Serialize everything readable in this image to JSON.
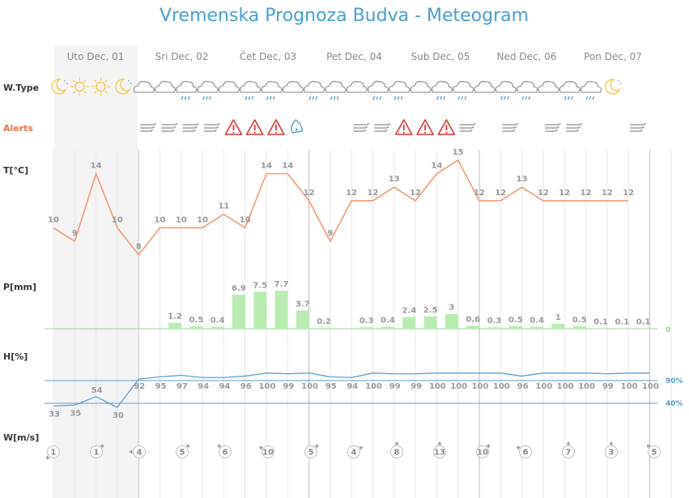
{
  "title": "Vremenska Prognoza Budva - Meteogram",
  "days": [
    "Uto Dec, 01",
    "Sri Dec, 02",
    "Čet Dec, 03",
    "Pet Dec, 04",
    "Sub Dec, 05",
    "Ned Dec, 06",
    "Pon Dec, 07"
  ],
  "row_labels": {
    "wtype": "W.Type",
    "alerts": "Alerts",
    "temp": "T[°C]",
    "precip": "P[mm]",
    "humidity": "H[%]",
    "wind": "W[m/s]"
  },
  "colors": {
    "title": "#4a9fd0",
    "temp_line": "#ef9a73",
    "precip_bar": "#b8ecb0",
    "precip_axis": "#8fd88a",
    "humidity_line": "#5b9ec9",
    "alerts_label": "#e8734a",
    "alert_triangle": "#e03434",
    "highlight": "#f4f4f4"
  },
  "weather_icons": [
    "moon-icon",
    "sun-icon",
    "sun-icon",
    "moon-icon",
    "cloud-icon",
    "cloud-icon",
    "cloud-icon",
    "cloud-icon",
    "cloud-icon",
    "cloud-icon",
    "cloud-icon",
    "cloud-icon",
    "cloud-icon",
    "cloud-icon",
    "cloud-icon",
    "cloud-icon",
    "cloud-icon",
    "cloud-icon",
    "cloud-icon",
    "cloud-icon",
    "cloud-icon",
    "cloud-icon",
    "cloud-icon",
    "cloud-icon",
    "cloud-icon",
    "cloud-icon",
    "moon-icon"
  ],
  "alerts": [
    "",
    "",
    "",
    "",
    "wind-icon",
    "wind-icon",
    "wind-icon",
    "wind-icon",
    "warning-icon",
    "warning-icon",
    "warning-icon",
    "hail-icon",
    "",
    "",
    "wind-icon",
    "wind-icon",
    "warning-icon",
    "warning-icon",
    "warning-icon",
    "wind-icon",
    "",
    "wind-icon",
    "",
    "wind-icon",
    "wind-icon",
    "",
    "",
    "wind-icon"
  ],
  "chart_data": {
    "type": "line",
    "series": [
      {
        "name": "T[°C]",
        "values": [
          10,
          9,
          14,
          10,
          8,
          10,
          10,
          10,
          11,
          10,
          14,
          14,
          12,
          9,
          12,
          12,
          13,
          12,
          14,
          15,
          12,
          12,
          13,
          12,
          12,
          12,
          12,
          12
        ]
      },
      {
        "name": "P[mm]",
        "values": [
          null,
          null,
          null,
          null,
          null,
          null,
          1.2,
          0.5,
          0.4,
          6.9,
          7.5,
          7.7,
          3.7,
          0.2,
          null,
          0.3,
          0.4,
          2.4,
          2.5,
          3,
          0.6,
          0.3,
          0.5,
          0.4,
          1,
          0.5,
          0.1,
          0.1,
          0.1
        ],
        "reference_label": "0"
      },
      {
        "name": "H[%]",
        "values": [
          33,
          35,
          54,
          30,
          92,
          95,
          97,
          94,
          94,
          96,
          100,
          99,
          100,
          95,
          94,
          100,
          99,
          99,
          100,
          100,
          100,
          100,
          96,
          100,
          100,
          100,
          99,
          100,
          100
        ],
        "reference_lines": [
          {
            "value": 90,
            "label": "90%"
          },
          {
            "value": 40,
            "label": "40%"
          }
        ]
      },
      {
        "name": "W[m/s]",
        "values": [
          1,
          1,
          4,
          5,
          6,
          10,
          5,
          4,
          8,
          13,
          10,
          6,
          7,
          3,
          5
        ],
        "direction_from_deg": [
          225,
          45,
          270,
          45,
          315,
          300,
          45,
          60,
          0,
          0,
          45,
          300,
          0,
          0,
          315
        ]
      }
    ]
  }
}
